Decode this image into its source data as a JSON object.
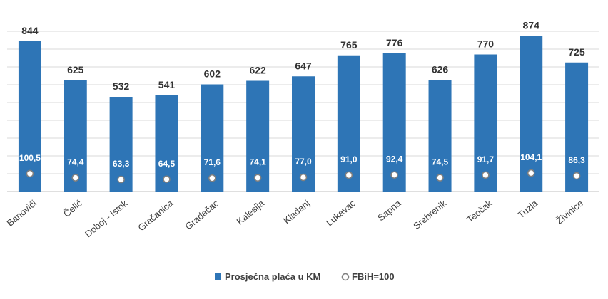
{
  "chart_data": {
    "type": "bar",
    "categories": [
      "Banovići",
      "Čelić",
      "Doboj - Istok",
      "Gračanica",
      "Gradačac",
      "Kalesija",
      "Kladanj",
      "Lukavac",
      "Sapna",
      "Srebrenik",
      "Teočak",
      "Tuzla",
      "Živinice"
    ],
    "series": [
      {
        "name": "Prosječna plaća u KM",
        "type": "bar",
        "color": "#2E75B6",
        "values": [
          844,
          625,
          532,
          541,
          602,
          622,
          647,
          765,
          776,
          626,
          770,
          874,
          725
        ],
        "labels": [
          "844",
          "625",
          "532",
          "541",
          "602",
          "622",
          "647",
          "765",
          "776",
          "626",
          "770",
          "874",
          "725"
        ]
      },
      {
        "name": "FBiH=100",
        "type": "marker",
        "values": [
          100.5,
          74.4,
          63.3,
          64.5,
          71.6,
          74.1,
          77.0,
          91.0,
          92.4,
          74.5,
          91.7,
          104.1,
          86.3
        ],
        "labels": [
          "100,5",
          "74,4",
          "63,3",
          "64,5",
          "71,6",
          "74,1",
          "77,0",
          "91,0",
          "92,4",
          "74,5",
          "91,7",
          "104,1",
          "86,3"
        ]
      }
    ],
    "ylim": [
      0,
      1000
    ],
    "grid": true,
    "legend_position": "bottom"
  }
}
